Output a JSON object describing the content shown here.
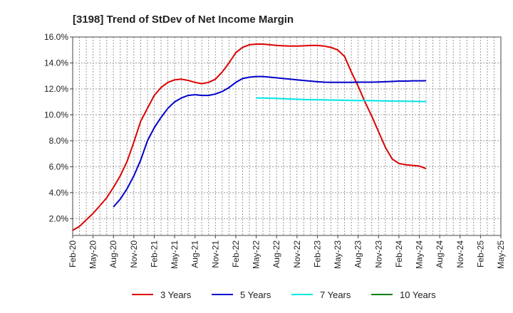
{
  "chart_data": {
    "type": "line",
    "title": "[3198]  Trend of StDev of Net Income Margin",
    "xlabel": "",
    "ylabel": "",
    "x_tick_labels": [
      "Feb-20",
      "May-20",
      "Aug-20",
      "Nov-20",
      "Feb-21",
      "May-21",
      "Aug-21",
      "Nov-21",
      "Feb-22",
      "May-22",
      "Aug-22",
      "Nov-22",
      "Feb-23",
      "May-23",
      "Aug-23",
      "Nov-23",
      "Feb-24",
      "May-24",
      "Aug-24",
      "Nov-24",
      "Feb-25",
      "May-25"
    ],
    "y_tick_labels": [
      "2.0%",
      "4.0%",
      "6.0%",
      "8.0%",
      "10.0%",
      "12.0%",
      "14.0%",
      "16.0%"
    ],
    "y_ticks": [
      2,
      4,
      6,
      8,
      10,
      12,
      14,
      16
    ],
    "ylim": [
      0.7,
      16.0
    ],
    "xlim": [
      0,
      63
    ],
    "grid": true,
    "legend_position": "bottom",
    "series": [
      {
        "name": "3 Years",
        "color": "#dd0000",
        "points": [
          [
            0,
            1.1
          ],
          [
            1,
            1.4
          ],
          [
            2,
            1.9
          ],
          [
            3,
            2.4
          ],
          [
            4,
            3.0
          ],
          [
            5,
            3.6
          ],
          [
            6,
            4.4
          ],
          [
            7,
            5.3
          ],
          [
            8,
            6.4
          ],
          [
            9,
            7.9
          ],
          [
            10,
            9.5
          ],
          [
            11,
            10.5
          ],
          [
            12,
            11.5
          ],
          [
            13,
            12.1
          ],
          [
            14,
            12.5
          ],
          [
            15,
            12.7
          ],
          [
            16,
            12.75
          ],
          [
            17,
            12.65
          ],
          [
            18,
            12.5
          ],
          [
            19,
            12.4
          ],
          [
            20,
            12.5
          ],
          [
            21,
            12.75
          ],
          [
            22,
            13.3
          ],
          [
            23,
            14.0
          ],
          [
            24,
            14.8
          ],
          [
            25,
            15.2
          ],
          [
            26,
            15.4
          ],
          [
            27,
            15.45
          ],
          [
            28,
            15.45
          ],
          [
            29,
            15.4
          ],
          [
            30,
            15.35
          ],
          [
            31,
            15.32
          ],
          [
            32,
            15.3
          ],
          [
            33,
            15.3
          ],
          [
            34,
            15.32
          ],
          [
            35,
            15.35
          ],
          [
            36,
            15.35
          ],
          [
            37,
            15.3
          ],
          [
            38,
            15.2
          ],
          [
            39,
            15.0
          ],
          [
            40,
            14.5
          ],
          [
            41,
            13.3
          ],
          [
            42,
            12.2
          ],
          [
            43,
            11.0
          ],
          [
            44,
            9.9
          ],
          [
            45,
            8.7
          ],
          [
            46,
            7.5
          ],
          [
            47,
            6.6
          ],
          [
            48,
            6.25
          ],
          [
            49,
            6.15
          ],
          [
            50,
            6.1
          ],
          [
            51,
            6.05
          ],
          [
            52,
            5.85
          ]
        ]
      },
      {
        "name": "5 Years",
        "color": "#0000cc",
        "points": [
          [
            6,
            2.9
          ],
          [
            7,
            3.5
          ],
          [
            8,
            4.3
          ],
          [
            9,
            5.3
          ],
          [
            10,
            6.5
          ],
          [
            11,
            8.0
          ],
          [
            12,
            9.0
          ],
          [
            13,
            9.8
          ],
          [
            14,
            10.5
          ],
          [
            15,
            11.0
          ],
          [
            16,
            11.3
          ],
          [
            17,
            11.5
          ],
          [
            18,
            11.55
          ],
          [
            19,
            11.5
          ],
          [
            20,
            11.5
          ],
          [
            21,
            11.6
          ],
          [
            22,
            11.8
          ],
          [
            23,
            12.1
          ],
          [
            24,
            12.5
          ],
          [
            25,
            12.8
          ],
          [
            26,
            12.9
          ],
          [
            27,
            12.95
          ],
          [
            28,
            12.95
          ],
          [
            29,
            12.9
          ],
          [
            30,
            12.85
          ],
          [
            31,
            12.8
          ],
          [
            32,
            12.75
          ],
          [
            33,
            12.7
          ],
          [
            34,
            12.65
          ],
          [
            35,
            12.6
          ],
          [
            36,
            12.55
          ],
          [
            37,
            12.52
          ],
          [
            38,
            12.5
          ],
          [
            39,
            12.5
          ],
          [
            40,
            12.5
          ],
          [
            41,
            12.5
          ],
          [
            42,
            12.52
          ],
          [
            43,
            12.52
          ],
          [
            44,
            12.52
          ],
          [
            45,
            12.53
          ],
          [
            46,
            12.55
          ],
          [
            47,
            12.57
          ],
          [
            48,
            12.6
          ],
          [
            49,
            12.6
          ],
          [
            50,
            12.62
          ],
          [
            51,
            12.62
          ],
          [
            52,
            12.63
          ]
        ]
      },
      {
        "name": "7 Years",
        "color": "#00e5e5",
        "points": [
          [
            27,
            11.3
          ],
          [
            28,
            11.3
          ],
          [
            29,
            11.28
          ],
          [
            30,
            11.26
          ],
          [
            31,
            11.24
          ],
          [
            32,
            11.22
          ],
          [
            33,
            11.2
          ],
          [
            34,
            11.18
          ],
          [
            35,
            11.17
          ],
          [
            36,
            11.16
          ],
          [
            37,
            11.15
          ],
          [
            38,
            11.14
          ],
          [
            39,
            11.13
          ],
          [
            40,
            11.12
          ],
          [
            41,
            11.11
          ],
          [
            42,
            11.1
          ],
          [
            43,
            11.1
          ],
          [
            44,
            11.09
          ],
          [
            45,
            11.08
          ],
          [
            46,
            11.07
          ],
          [
            47,
            11.06
          ],
          [
            48,
            11.05
          ],
          [
            49,
            11.05
          ],
          [
            50,
            11.04
          ],
          [
            51,
            11.03
          ],
          [
            52,
            11.02
          ]
        ]
      },
      {
        "name": "10 Years",
        "color": "#008000",
        "points": []
      }
    ]
  }
}
